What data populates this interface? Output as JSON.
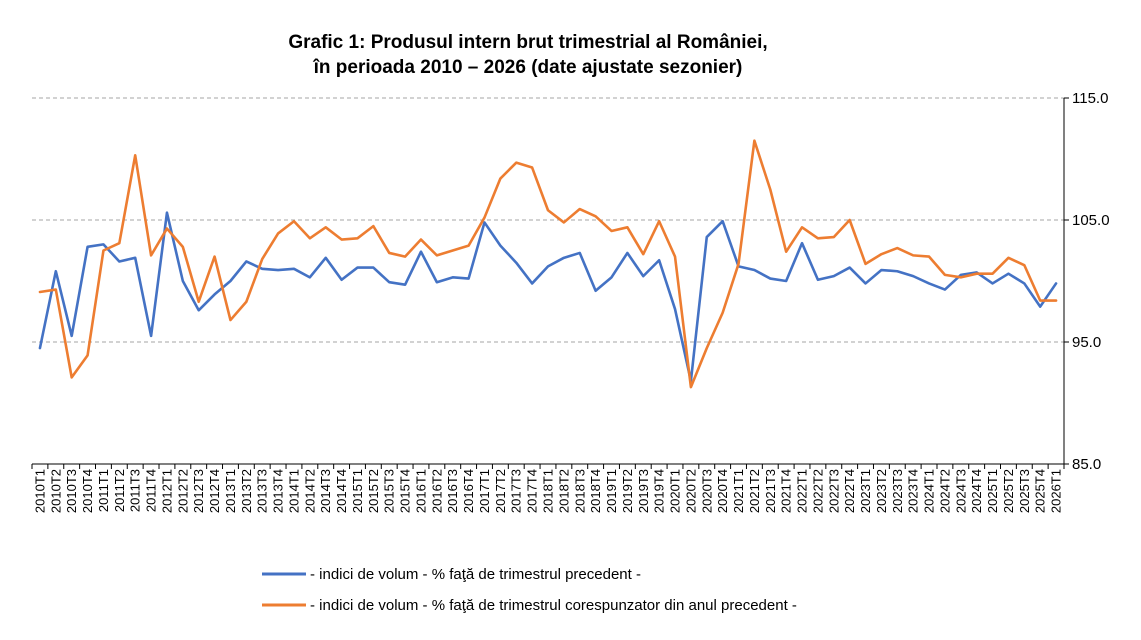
{
  "chart_data": {
    "type": "line",
    "title": [
      "Grafic 1: Produsul intern brut trimestrial al României,",
      "în perioada 2010 – 2026 (date ajustate sezonier)"
    ],
    "ylim": [
      85,
      115
    ],
    "yticks": [
      85,
      95,
      105,
      115
    ],
    "ytick_labels": [
      "85.0",
      "95.0",
      "105.0",
      "115.0"
    ],
    "y_axis_side": "right",
    "grid": "dashed horizontal",
    "legend_position": "bottom",
    "colors": {
      "series1": "#4472C4",
      "series2": "#ED7D31",
      "grid": "#A6A6A6",
      "axis": "#000000"
    },
    "categories": [
      "2010T1",
      "2010T2",
      "2010T3",
      "2010T4",
      "2011T1",
      "2011T2",
      "2011T3",
      "2011T4",
      "2012T1",
      "2012T2",
      "2012T3",
      "2012T4",
      "2013T1",
      "2013T2",
      "2013T3",
      "2013T4",
      "2014T1",
      "2014T2",
      "2014T3",
      "2014T4",
      "2015T1",
      "2015T2",
      "2015T3",
      "2015T4",
      "2016T1",
      "2016T2",
      "2016T3",
      "2016T4",
      "2017T1",
      "2017T2",
      "2017T3",
      "2017T4",
      "2018T1",
      "2018T2",
      "2018T3",
      "2018T4",
      "2019T1",
      "2019T2",
      "2019T3",
      "2019T4",
      "2020T1",
      "2020T2",
      "2020T3",
      "2020T4",
      "2021T1",
      "2021T2",
      "2021T3",
      "2021T4",
      "2022T1",
      "2022T2",
      "2022T3",
      "2022T4",
      "2023T1",
      "2023T2",
      "2023T3",
      "2023T4",
      "2024T1",
      "2024T2",
      "2024T3",
      "2024T4",
      "2025T1",
      "2025T2",
      "2025T3",
      "2025T4",
      "2026T1"
    ],
    "series": [
      {
        "name": "- indici de volum - % faţă de trimestrul precedent -",
        "values": [
          94.5,
          100.8,
          95.5,
          102.8,
          103.0,
          101.6,
          101.9,
          95.5,
          105.6,
          100.0,
          97.6,
          98.9,
          100.0,
          101.6,
          101.0,
          100.9,
          101.0,
          100.3,
          101.9,
          100.1,
          101.1,
          101.1,
          99.9,
          99.7,
          102.4,
          99.9,
          100.3,
          100.2,
          104.8,
          102.9,
          101.5,
          99.8,
          101.2,
          101.9,
          102.3,
          99.2,
          100.3,
          102.3,
          100.4,
          101.7,
          97.7,
          91.8,
          103.6,
          104.9,
          101.2,
          100.9,
          100.2,
          100.0,
          103.1,
          100.1,
          100.4,
          101.1,
          99.8,
          100.9,
          100.8,
          100.4,
          99.8,
          99.3,
          100.5,
          100.7,
          99.8,
          100.6,
          99.8,
          97.9,
          99.8
        ]
      },
      {
        "name": "- indici de volum - % faţă de trimestrul corespunzator din anul precedent -",
        "values": [
          99.1,
          99.3,
          92.1,
          93.9,
          102.5,
          103.1,
          110.3,
          102.1,
          104.3,
          102.8,
          98.3,
          102.0,
          96.8,
          98.3,
          101.8,
          103.9,
          104.9,
          103.5,
          104.4,
          103.4,
          103.5,
          104.5,
          102.3,
          102.0,
          103.4,
          102.1,
          102.5,
          102.9,
          105.2,
          108.4,
          109.7,
          109.3,
          105.8,
          104.8,
          105.9,
          105.3,
          104.1,
          104.4,
          102.2,
          104.9,
          102.0,
          91.3,
          94.5,
          97.4,
          101.4,
          111.5,
          107.5,
          102.4,
          104.4,
          103.5,
          103.6,
          105.0,
          101.4,
          102.2,
          102.7,
          102.1,
          102.0,
          100.5,
          100.3,
          100.6,
          100.6,
          101.9,
          101.3,
          98.4,
          98.4
        ]
      }
    ]
  }
}
